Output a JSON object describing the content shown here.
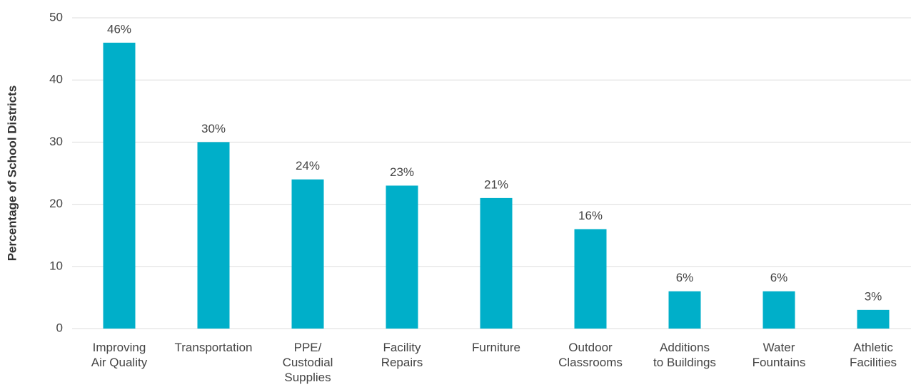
{
  "chart_data": {
    "type": "bar",
    "y_label": "Percentage of School Districts",
    "categories": [
      "Improving\nAir Quality",
      "Transportation",
      "PPE/\nCustodial\nSupplies",
      "Facility\nRepairs",
      "Furniture",
      "Outdoor\nClassrooms",
      "Additions\nto Buildings",
      "Water\nFountains",
      "Athletic\nFacilities"
    ],
    "values": [
      46,
      30,
      24,
      23,
      21,
      16,
      6,
      6,
      3
    ],
    "value_labels": [
      "46%",
      "30%",
      "24%",
      "23%",
      "21%",
      "16%",
      "6%",
      "6%",
      "3%"
    ],
    "color": "#00afc9",
    "ylim": [
      0,
      50
    ],
    "yticks": [
      0,
      10,
      20,
      30,
      40,
      50
    ],
    "grid": true
  }
}
